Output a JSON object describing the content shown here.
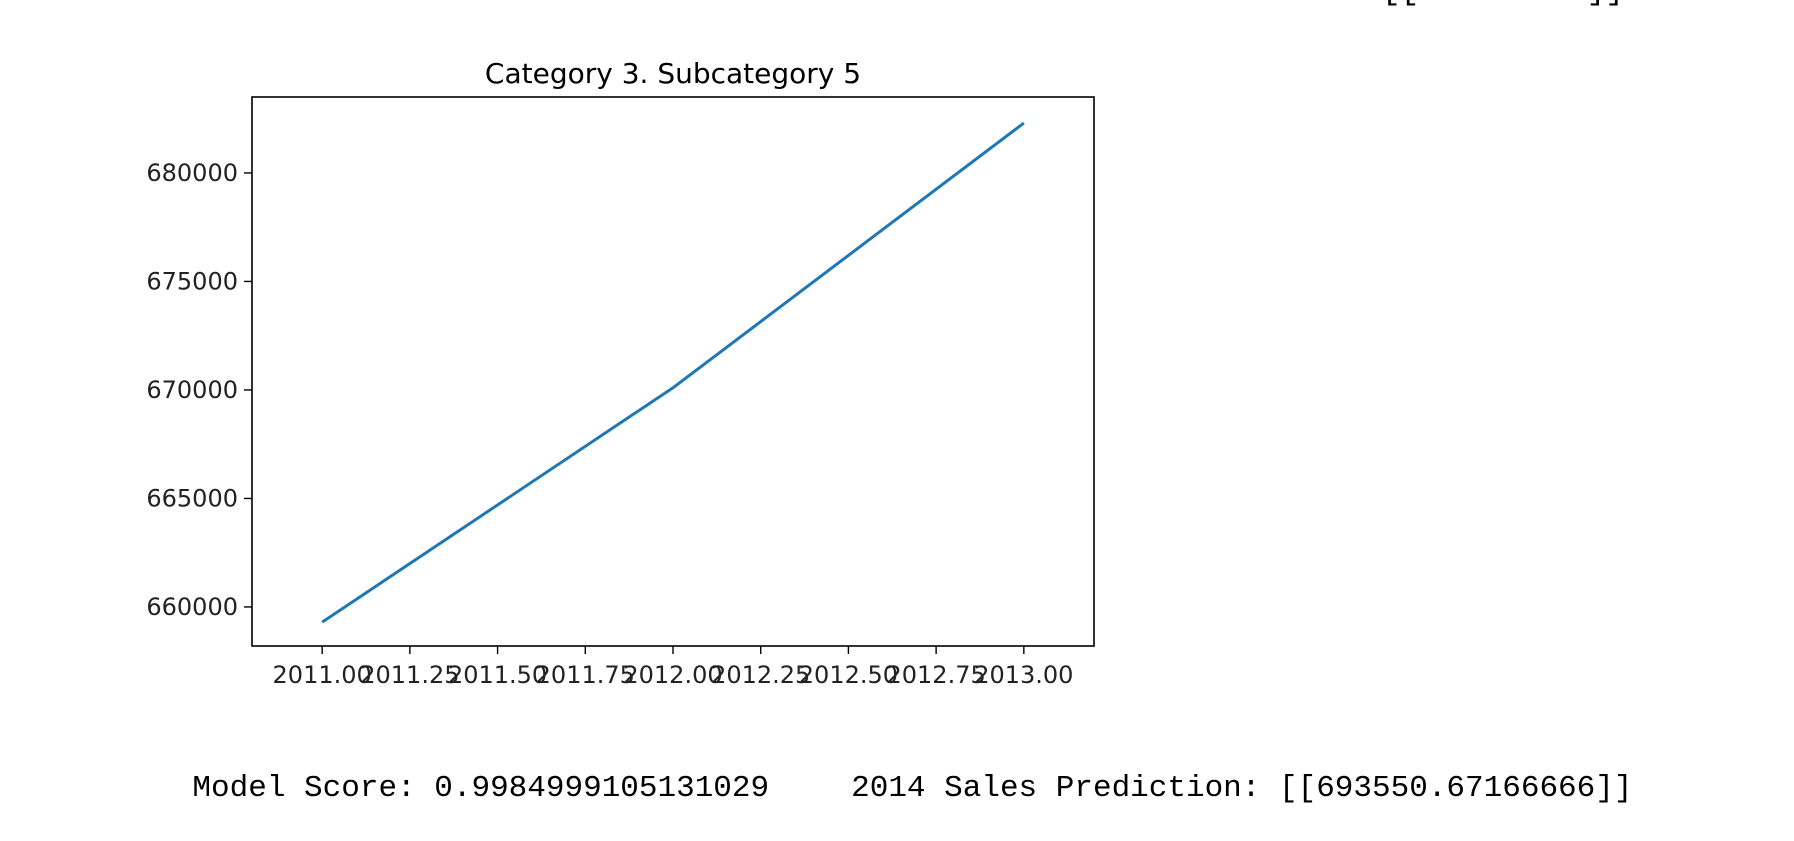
{
  "cropped_previous_output": "[[         ]]",
  "chart_data": {
    "type": "line",
    "title": "Category 3.  Subcategory 5",
    "xlabel": "",
    "ylabel": "",
    "x": [
      2011.0,
      2012.0,
      2013.0
    ],
    "series": [
      {
        "values": [
          659300,
          670100,
          682300
        ],
        "color": "#1f77b4"
      }
    ],
    "xlim": [
      2010.8,
      2013.2
    ],
    "ylim": [
      658200,
      683500
    ],
    "xticks": [
      2011.0,
      2011.25,
      2011.5,
      2011.75,
      2012.0,
      2012.25,
      2012.5,
      2012.75,
      2013.0
    ],
    "xtick_labels": [
      "2011.00",
      "2011.25",
      "2011.50",
      "2011.75",
      "2012.00",
      "2012.25",
      "2012.50",
      "2012.75",
      "2013.00"
    ],
    "yticks": [
      660000,
      665000,
      670000,
      675000,
      680000
    ],
    "ytick_labels": [
      "660000",
      "665000",
      "670000",
      "675000",
      "680000"
    ],
    "grid": false,
    "legend": "none"
  },
  "output": {
    "score_label": "Model Score: ",
    "score_value": "0.9984999105131029",
    "prediction_label": "2014 Sales Prediction: ",
    "prediction_value": "[[693550.67166666]]"
  }
}
